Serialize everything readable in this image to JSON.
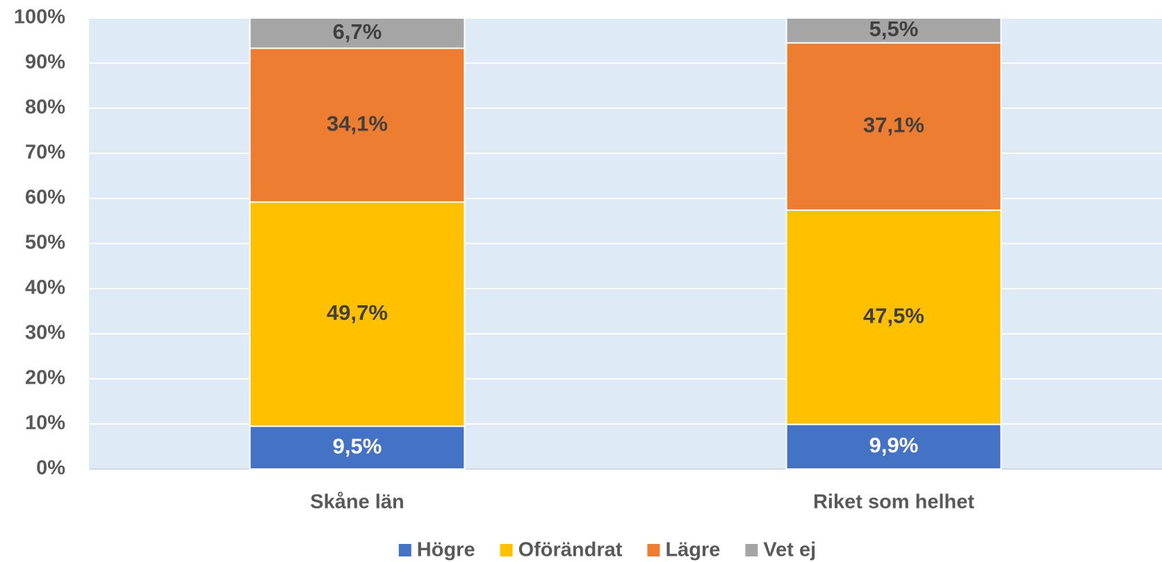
{
  "chart_data": {
    "type": "stacked_bar",
    "categories": [
      "Skåne län",
      "Riket som helhet"
    ],
    "series": [
      {
        "name": "Högre",
        "color": "#4472c4",
        "values": [
          9.5,
          9.9
        ],
        "value_labels": [
          "9,5%",
          "9,9%"
        ]
      },
      {
        "name": "Oförändrat",
        "color": "#ffc000",
        "values": [
          49.7,
          47.5
        ],
        "value_labels": [
          "49,7%",
          "47,5%"
        ]
      },
      {
        "name": "Lägre",
        "color": "#ed7d31",
        "values": [
          34.1,
          37.1
        ],
        "value_labels": [
          "34,1%",
          "37,1%"
        ]
      },
      {
        "name": "Vet ej",
        "color": "#a5a5a5",
        "values": [
          6.7,
          5.5
        ],
        "value_labels": [
          "6,7%",
          "5,5%"
        ]
      }
    ],
    "ylim": [
      0,
      100
    ],
    "yticks": [
      {
        "value": 0,
        "label": "0%"
      },
      {
        "value": 10,
        "label": "10%"
      },
      {
        "value": 20,
        "label": "20%"
      },
      {
        "value": 30,
        "label": "30%"
      },
      {
        "value": 40,
        "label": "40%"
      },
      {
        "value": 50,
        "label": "50%"
      },
      {
        "value": 60,
        "label": "60%"
      },
      {
        "value": 70,
        "label": "70%"
      },
      {
        "value": 80,
        "label": "80%"
      },
      {
        "value": 90,
        "label": "90%"
      },
      {
        "value": 100,
        "label": "100%"
      }
    ],
    "grid": true,
    "legend": "bottom"
  }
}
